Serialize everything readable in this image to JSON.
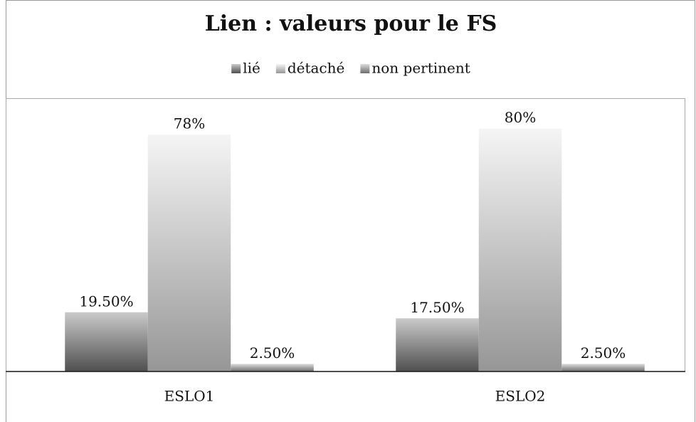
{
  "chart_data": {
    "type": "bar",
    "title": "Lien : valeurs pour le FS",
    "categories": [
      "ESLO1",
      "ESLO2"
    ],
    "series": [
      {
        "name": "lié",
        "color": "#7a7a7a",
        "values": [
          19.5,
          17.5
        ],
        "value_labels": [
          "19.50%",
          "17.50%"
        ]
      },
      {
        "name": "détaché",
        "color": "#e6e6e6",
        "values": [
          78,
          80
        ],
        "value_labels": [
          "78%",
          "80%"
        ]
      },
      {
        "name": "non pertinent",
        "color": "#a8a8a8",
        "values": [
          2.5,
          2.5
        ],
        "value_labels": [
          "2.50%",
          "2.50%"
        ]
      }
    ],
    "ylim": [
      0,
      90
    ],
    "legend": "top"
  }
}
